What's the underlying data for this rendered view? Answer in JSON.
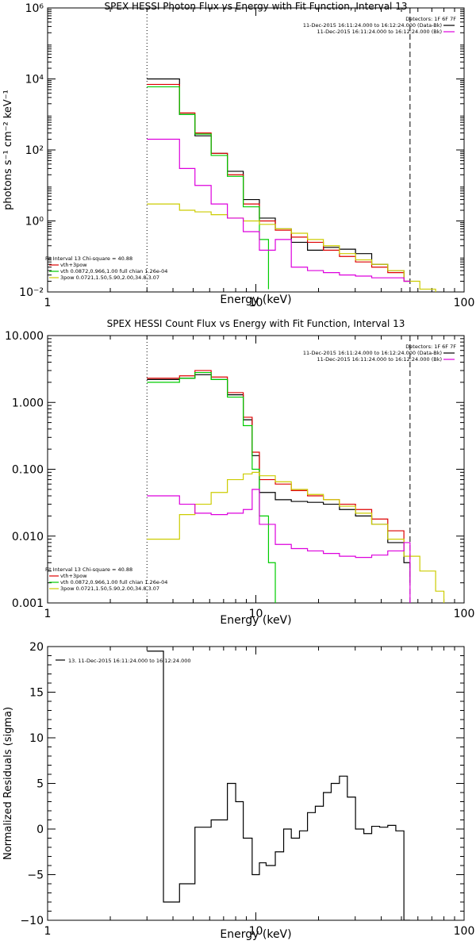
{
  "chart_data": [
    {
      "type": "line",
      "title": "SPEX HESSI Photon Flux vs Energy with Fit Function, Interval 13",
      "xlabel": "Energy (keV)",
      "ylabel": "photons s⁻¹ cm⁻² keV⁻¹",
      "xscale": "log",
      "yscale": "log",
      "xlim": [
        1,
        100
      ],
      "ylim": [
        0.01,
        1000000
      ],
      "x_ticks": [
        {
          "value": 1,
          "label": "1"
        },
        {
          "value": 10,
          "label": "10"
        },
        {
          "value": 100,
          "label": "100"
        }
      ],
      "y_ticks": [
        {
          "value": 0.01,
          "label": "10⁻²"
        },
        {
          "value": 1,
          "label": "10⁰"
        },
        {
          "value": 100,
          "label": "10²"
        },
        {
          "value": 10000,
          "label": "10⁴"
        },
        {
          "value": 1000000,
          "label": "10⁶"
        }
      ],
      "vlines": [
        {
          "x": 3,
          "style": "dotted"
        },
        {
          "x": 55,
          "style": "dashed"
        }
      ],
      "legend_top": {
        "position": "top-right",
        "header": "Detectors: 1F 6F 7F",
        "entries": [
          {
            "label": "11-Dec-2015 16:11:24.000 to 16:12:24.000 (Data-Bk)",
            "color": "#000000"
          },
          {
            "label": "11-Dec-2015 16:11:24.000 to 16:12:24.000 (Bk)",
            "color": "#dd00dd"
          }
        ]
      },
      "legend_bottom": {
        "position": "bottom-left",
        "header": "Fit Interval 13   Chi-square = 40.88",
        "entries": [
          {
            "label": "vth+3pow",
            "color": "#dd0000"
          },
          {
            "label": "vth 0.0872,0.966,1.00  full chian 1.26e-04",
            "color": "#00cc00"
          },
          {
            "label": "3pow 0.0721,1.50,5.90,2.00,34.8,3.07",
            "color": "#cccc00"
          }
        ]
      },
      "series": [
        {
          "color": "#000000",
          "x": [
            3,
            3.6,
            4.3,
            5.1,
            6.1,
            7.3,
            8.7,
            10.4,
            12.4,
            14.8,
            17.7,
            21.1,
            25.2,
            30.1,
            36,
            43,
            51.4,
            55
          ],
          "y": [
            10000,
            10000,
            1000,
            250,
            80,
            25,
            4,
            1.2,
            0.6,
            0.25,
            0.15,
            0.18,
            0.16,
            0.12,
            0.06,
            0.04,
            0.02,
            0.02
          ]
        },
        {
          "color": "#dd0000",
          "x": [
            3,
            3.6,
            4.3,
            5.1,
            6.1,
            7.3,
            8.7,
            10.4,
            12.4,
            14.8,
            17.7,
            21.1,
            25.2,
            30.1,
            36,
            43,
            51.4
          ],
          "y": [
            7000,
            7000,
            1100,
            300,
            80,
            20,
            3,
            1,
            0.55,
            0.35,
            0.25,
            0.15,
            0.1,
            0.07,
            0.05,
            0.035,
            0.025
          ]
        },
        {
          "color": "#00cc00",
          "x": [
            3,
            3.6,
            4.3,
            5.1,
            6.1,
            7.3,
            8.7,
            10.4,
            11.5
          ],
          "y": [
            6000,
            6000,
            1000,
            280,
            70,
            18,
            2.5,
            0.3,
            0.012
          ]
        },
        {
          "color": "#cccc00",
          "x": [
            3,
            3.6,
            4.3,
            5.1,
            6.1,
            7.3,
            8.7,
            10.4,
            12.4,
            14.8,
            17.7,
            21.1,
            25.2,
            30.1,
            36,
            43,
            51.4,
            61.3,
            73
          ],
          "y": [
            3,
            3,
            2,
            1.8,
            1.5,
            1.2,
            1,
            0.8,
            0.6,
            0.45,
            0.3,
            0.2,
            0.12,
            0.08,
            0.06,
            0.04,
            0.02,
            0.012,
            0.01
          ]
        },
        {
          "color": "#dd00dd",
          "x": [
            3,
            3.6,
            4.3,
            5.1,
            6.1,
            7.3,
            8.7,
            10.4,
            12.4,
            14.8,
            17.7,
            21.1,
            25.2,
            30.1,
            36,
            43,
            51.4,
            55
          ],
          "y": [
            200,
            200,
            30,
            10,
            3,
            1.2,
            0.5,
            0.15,
            0.3,
            0.05,
            0.04,
            0.035,
            0.03,
            0.028,
            0.025,
            0.025,
            0.02,
            0.02
          ]
        }
      ]
    },
    {
      "type": "line",
      "title": "SPEX HESSI Count Flux vs Energy with Fit Function, Interval 13",
      "xlabel": "Energy (keV)",
      "ylabel": "",
      "xscale": "log",
      "yscale": "log",
      "xlim": [
        1,
        100
      ],
      "ylim": [
        0.001,
        10
      ],
      "x_ticks": [
        {
          "value": 1,
          "label": "1"
        },
        {
          "value": 10,
          "label": "10"
        },
        {
          "value": 100,
          "label": "100"
        }
      ],
      "y_ticks": [
        {
          "value": 0.001,
          "label": "0.001"
        },
        {
          "value": 0.01,
          "label": "0.010"
        },
        {
          "value": 0.1,
          "label": "0.100"
        },
        {
          "value": 1,
          "label": "1.000"
        },
        {
          "value": 10,
          "label": "10.000"
        }
      ],
      "vlines": [
        {
          "x": 3,
          "style": "dotted"
        },
        {
          "x": 55,
          "style": "dashed"
        }
      ],
      "legend_top": {
        "position": "top-right",
        "header": "Detectors: 1F 6F 7F",
        "entries": [
          {
            "label": "11-Dec-2015 16:11:24.000 to 16:12:24.000 (Data-Bk)",
            "color": "#000000"
          },
          {
            "label": "11-Dec-2015 16:11:24.000 to 16:12:24.000 (Bk)",
            "color": "#dd00dd"
          }
        ]
      },
      "legend_bottom": {
        "position": "bottom-left",
        "header": "Fit Interval 13   Chi-square = 40.88",
        "entries": [
          {
            "label": "vth+3pow",
            "color": "#dd0000"
          },
          {
            "label": "vth 0.0872,0.966,1.00  full chian 1.26e-04",
            "color": "#00cc00"
          },
          {
            "label": "3pow 0.0721,1.50,5.90,2.00,34.8,3.07",
            "color": "#cccc00"
          }
        ]
      },
      "series": [
        {
          "color": "#000000",
          "x": [
            3,
            3.6,
            4.3,
            5.1,
            6.1,
            7.3,
            8.7,
            9.6,
            10.4,
            12.4,
            14.8,
            17.7,
            21.1,
            25.2,
            30.1,
            36,
            43,
            51.4,
            55
          ],
          "y": [
            2.2,
            2.2,
            2.3,
            2.6,
            2.2,
            1.3,
            0.55,
            0.16,
            0.045,
            0.035,
            0.033,
            0.032,
            0.03,
            0.025,
            0.02,
            0.015,
            0.008,
            0.004,
            0.002
          ]
        },
        {
          "color": "#dd0000",
          "x": [
            3,
            3.6,
            4.3,
            5.1,
            6.1,
            7.3,
            8.7,
            9.6,
            10.4,
            12.4,
            14.8,
            17.7,
            21.1,
            25.2,
            30.1,
            36,
            43,
            51.4
          ],
          "y": [
            2.3,
            2.3,
            2.5,
            3,
            2.4,
            1.4,
            0.6,
            0.18,
            0.07,
            0.06,
            0.048,
            0.04,
            0.035,
            0.03,
            0.025,
            0.018,
            0.012,
            0.008
          ]
        },
        {
          "color": "#00cc00",
          "x": [
            3,
            3.6,
            4.3,
            5.1,
            6.1,
            7.3,
            8.7,
            9.6,
            10.4,
            11.5,
            12.4
          ],
          "y": [
            2,
            2,
            2.3,
            2.8,
            2.2,
            1.2,
            0.45,
            0.1,
            0.02,
            0.004,
            0.001
          ]
        },
        {
          "color": "#cccc00",
          "x": [
            3,
            3.6,
            4.3,
            5.1,
            6.1,
            7.3,
            8.7,
            9.6,
            10.4,
            12.4,
            14.8,
            17.7,
            21.1,
            25.2,
            30.1,
            36,
            43,
            51.4,
            61.3,
            73,
            80
          ],
          "y": [
            0.009,
            0.009,
            0.021,
            0.03,
            0.045,
            0.07,
            0.085,
            0.09,
            0.08,
            0.065,
            0.05,
            0.042,
            0.035,
            0.028,
            0.022,
            0.015,
            0.009,
            0.005,
            0.003,
            0.0015,
            0.001
          ]
        },
        {
          "color": "#dd00dd",
          "x": [
            3,
            3.6,
            4.3,
            5.1,
            6.1,
            7.3,
            8.7,
            9.6,
            10.4,
            12.4,
            14.8,
            17.7,
            21.1,
            25.2,
            30.1,
            36,
            43,
            51.4,
            55
          ],
          "y": [
            0.04,
            0.04,
            0.03,
            0.022,
            0.021,
            0.022,
            0.025,
            0.05,
            0.015,
            0.0075,
            0.0065,
            0.006,
            0.0055,
            0.005,
            0.0048,
            0.0052,
            0.006,
            0.008,
            0.001
          ]
        }
      ]
    },
    {
      "type": "line",
      "title": "",
      "xlabel": "Energy (keV)",
      "ylabel": "Normalized Residuals (sigma)",
      "xscale": "log",
      "yscale": "linear",
      "xlim": [
        1,
        100
      ],
      "ylim": [
        -10,
        20
      ],
      "x_ticks": [
        {
          "value": 1,
          "label": "1"
        },
        {
          "value": 10,
          "label": "10"
        },
        {
          "value": 100,
          "label": "100"
        }
      ],
      "y_ticks": [
        {
          "value": -10,
          "label": "-10"
        },
        {
          "value": -5,
          "label": "-5"
        },
        {
          "value": 0,
          "label": "0"
        },
        {
          "value": 5,
          "label": "5"
        },
        {
          "value": 10,
          "label": "10"
        },
        {
          "value": 15,
          "label": "15"
        },
        {
          "value": 20,
          "label": "20"
        }
      ],
      "legend_top": {
        "position": "top-left",
        "header": "",
        "entries": [
          {
            "label": "13. 11-Dec-2015 16:11:24.000 to 16:12:24.000",
            "color": "#000000"
          }
        ]
      },
      "series": [
        {
          "color": "#000000",
          "x": [
            3,
            3.6,
            4.3,
            5.1,
            6.1,
            7.3,
            8.0,
            8.7,
            9.6,
            10.4,
            11.2,
            12.4,
            13.6,
            14.8,
            16.2,
            17.7,
            19.3,
            21.1,
            23.0,
            25.2,
            27.5,
            30.1,
            33.0,
            36,
            39.3,
            43,
            47,
            51.4,
            55
          ],
          "y": [
            19.5,
            -8,
            -6,
            0.2,
            1,
            5,
            3,
            -1,
            -5,
            -3.7,
            -4,
            -2.5,
            0,
            -1,
            -0.2,
            1.8,
            2.5,
            4,
            5,
            5.8,
            3.5,
            0,
            -0.5,
            0.3,
            0.2,
            0.4,
            -0.2,
            -10,
            -10
          ]
        }
      ]
    }
  ]
}
